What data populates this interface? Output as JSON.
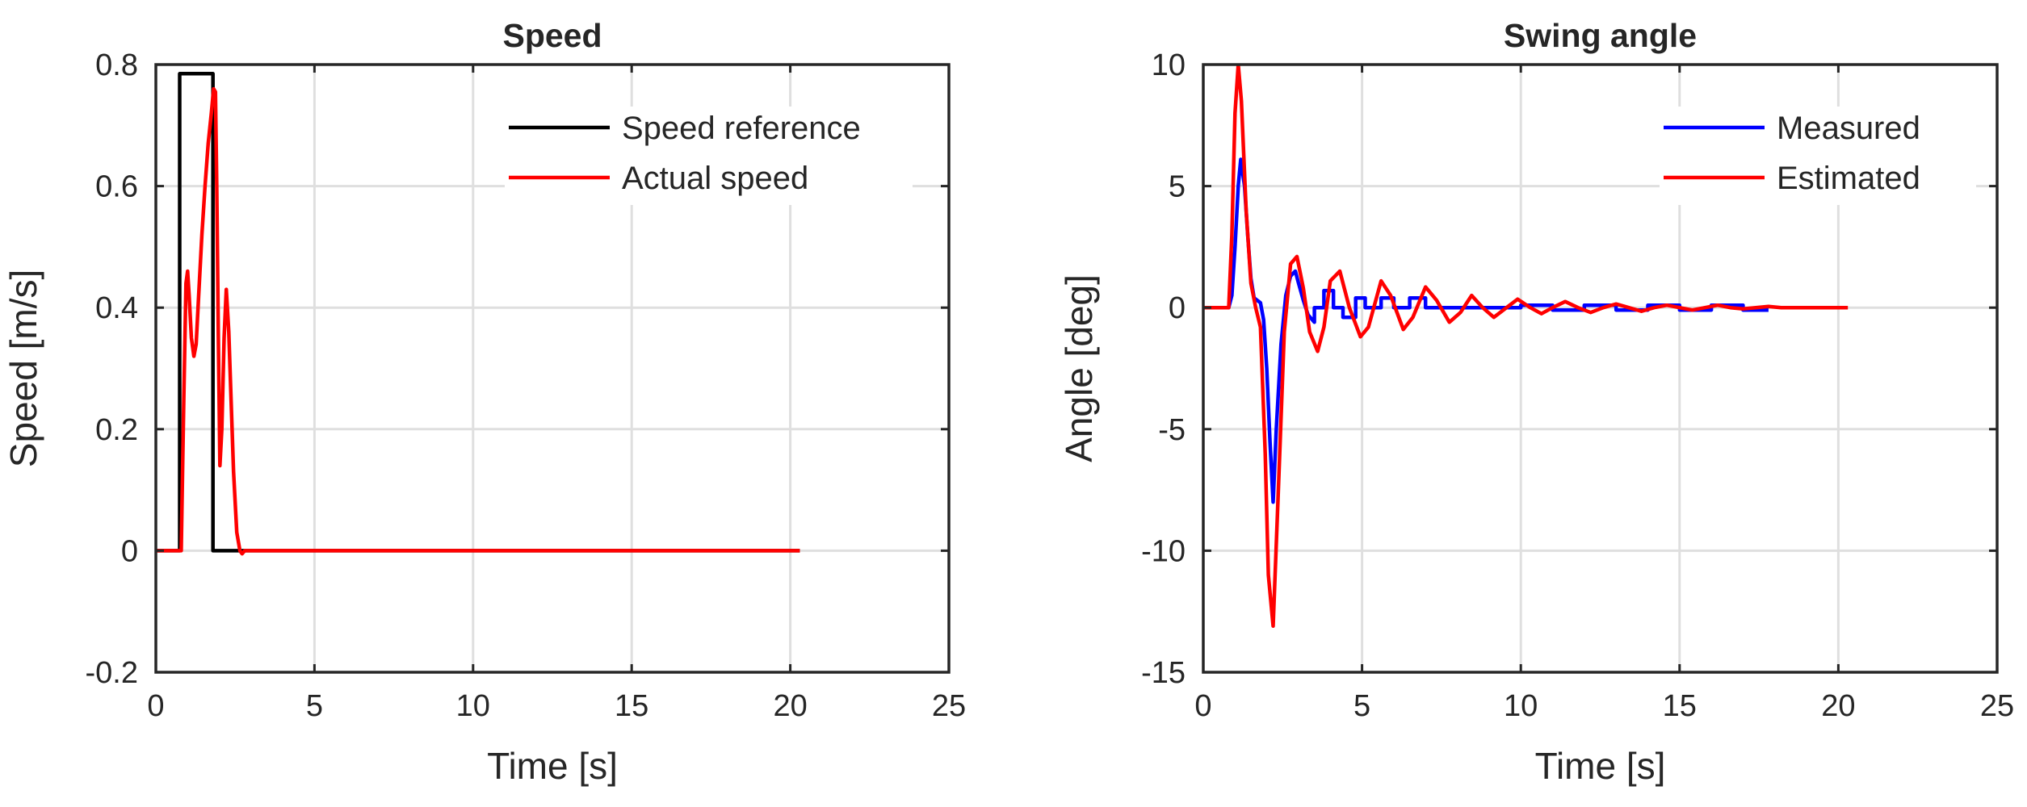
{
  "chart_data": [
    {
      "type": "line",
      "title": "Speed",
      "xlabel": "Time [s]",
      "ylabel": "Speed [m/s]",
      "xlim": [
        0,
        25
      ],
      "ylim": [
        -0.2,
        0.8
      ],
      "xticks": [
        0,
        5,
        10,
        15,
        20,
        25
      ],
      "yticks": [
        -0.2,
        0,
        0.2,
        0.4,
        0.6,
        0.8
      ],
      "xtick_labels": [
        "0",
        "5",
        "10",
        "15",
        "20",
        "25"
      ],
      "ytick_labels": [
        "-0.2",
        "0",
        "0.2",
        "0.4",
        "0.6",
        "0.8"
      ],
      "grid": true,
      "legend_position": "top-right",
      "series": [
        {
          "name": "Speed reference",
          "color": "#000000",
          "x": [
            0,
            0.75,
            0.75,
            1.8,
            1.8,
            20.3
          ],
          "y": [
            0,
            0,
            0.785,
            0.785,
            0,
            0
          ]
        },
        {
          "name": "Actual speed",
          "color": "#ff0000",
          "x": [
            0,
            0.8,
            0.88,
            0.95,
            1.0,
            1.05,
            1.12,
            1.2,
            1.27,
            1.35,
            1.45,
            1.55,
            1.65,
            1.75,
            1.82,
            1.88,
            1.92,
            1.97,
            2.02,
            2.08,
            2.15,
            2.22,
            2.3,
            2.37,
            2.45,
            2.55,
            2.65,
            2.72,
            2.8,
            3.0,
            20.3
          ],
          "y": [
            0,
            0.0,
            0.25,
            0.44,
            0.46,
            0.42,
            0.35,
            0.32,
            0.34,
            0.42,
            0.52,
            0.6,
            0.67,
            0.72,
            0.76,
            0.755,
            0.6,
            0.35,
            0.14,
            0.2,
            0.35,
            0.43,
            0.36,
            0.25,
            0.13,
            0.03,
            0.0,
            -0.005,
            0.0,
            0.0,
            0.0
          ]
        }
      ]
    },
    {
      "type": "line",
      "title": "Swing angle",
      "xlabel": "Time [s]",
      "ylabel": "Angle [deg]",
      "xlim": [
        0,
        25
      ],
      "ylim": [
        -15,
        10
      ],
      "xticks": [
        0,
        5,
        10,
        15,
        20,
        25
      ],
      "yticks": [
        -15,
        -10,
        -5,
        0,
        5,
        10
      ],
      "xtick_labels": [
        "0",
        "5",
        "10",
        "15",
        "20",
        "25"
      ],
      "ytick_labels": [
        "-15",
        "-10",
        "-5",
        "0",
        "5",
        "10"
      ],
      "grid": true,
      "legend_position": "top-right",
      "series": [
        {
          "name": "Measured",
          "color": "#0000ff",
          "x": [
            0,
            0.8,
            0.9,
            1.0,
            1.1,
            1.18,
            1.3,
            1.4,
            1.5,
            1.6,
            1.7,
            1.8,
            1.9,
            2.0,
            2.1,
            2.2,
            2.3,
            2.45,
            2.6,
            2.75,
            2.9,
            3.0,
            3.15,
            3.3,
            3.5,
            3.5,
            3.8,
            3.8,
            4.1,
            4.1,
            4.4,
            4.4,
            4.8,
            4.8,
            5.1,
            5.1,
            5.6,
            5.6,
            6.0,
            6.0,
            6.5,
            6.5,
            7.0,
            7.0,
            7.6,
            7.6,
            10.0,
            10.0,
            11.0,
            11.0,
            12.0,
            12.0,
            13.0,
            13.0,
            14.0,
            14.0,
            15.0,
            15.0,
            16.0,
            16.0,
            17.0,
            17.0,
            17.8
          ],
          "y": [
            0,
            0,
            0.5,
            2.5,
            5.0,
            6.1,
            5.0,
            3.0,
            1.2,
            0.4,
            0.3,
            0.2,
            -0.5,
            -2.5,
            -5.5,
            -8.0,
            -5.0,
            -1.5,
            0.5,
            1.3,
            1.5,
            1.0,
            0.3,
            -0.3,
            -0.6,
            0.0,
            0.0,
            0.7,
            0.7,
            0.0,
            0.0,
            -0.4,
            -0.4,
            0.4,
            0.4,
            0.0,
            0.0,
            0.4,
            0.4,
            0.0,
            0.0,
            0.4,
            0.4,
            0.0,
            0.0,
            0.0,
            0.0,
            0.1,
            0.1,
            -0.1,
            -0.1,
            0.1,
            0.1,
            -0.1,
            -0.1,
            0.1,
            0.1,
            -0.1,
            -0.1,
            0.1,
            0.1,
            -0.1,
            -0.1
          ]
        },
        {
          "name": "Estimated",
          "color": "#ff0000",
          "x": [
            0,
            0.8,
            0.9,
            1.0,
            1.1,
            1.2,
            1.35,
            1.5,
            1.65,
            1.8,
            1.95,
            2.05,
            2.2,
            2.35,
            2.55,
            2.75,
            2.95,
            3.15,
            3.35,
            3.6,
            3.8,
            4.0,
            4.3,
            4.6,
            4.95,
            5.2,
            5.6,
            5.9,
            6.3,
            6.6,
            7.0,
            7.35,
            7.75,
            8.1,
            8.45,
            8.8,
            9.15,
            9.55,
            9.9,
            10.3,
            10.65,
            11.0,
            11.4,
            11.8,
            12.2,
            12.6,
            13.0,
            13.4,
            13.8,
            14.2,
            14.6,
            15.0,
            15.4,
            15.8,
            16.2,
            16.6,
            17.0,
            17.4,
            17.8,
            18.2,
            20.3
          ],
          "y": [
            0,
            0,
            3.0,
            8.0,
            10.0,
            8.5,
            4.0,
            1.0,
            0.0,
            -0.8,
            -6.0,
            -11.0,
            -13.1,
            -8.0,
            -1.0,
            1.8,
            2.1,
            0.8,
            -1.0,
            -1.8,
            -0.8,
            1.1,
            1.5,
            0.0,
            -1.2,
            -0.8,
            1.1,
            0.5,
            -0.9,
            -0.4,
            0.85,
            0.3,
            -0.6,
            -0.2,
            0.5,
            0.0,
            -0.4,
            0.0,
            0.35,
            0.0,
            -0.25,
            0.0,
            0.25,
            0.0,
            -0.2,
            0.0,
            0.15,
            0.0,
            -0.15,
            0.0,
            0.1,
            0.0,
            -0.1,
            0.0,
            0.1,
            0.0,
            -0.05,
            0.0,
            0.05,
            0.0,
            0.0
          ]
        }
      ]
    }
  ]
}
